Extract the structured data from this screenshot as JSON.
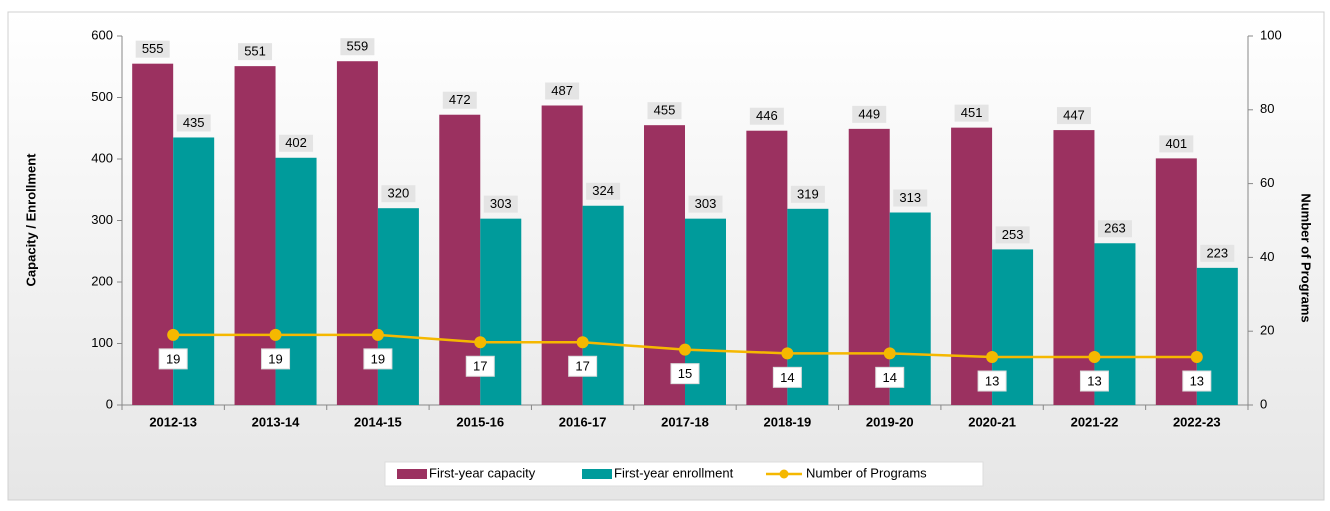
{
  "chart_data": {
    "type": "bar",
    "y_label": "Capacity / Enrollment",
    "y2_label": "Number of Programs",
    "categories": [
      "2012-13",
      "2013-14",
      "2014-15",
      "2015-16",
      "2016-17",
      "2017-18",
      "2018-19",
      "2019-20",
      "2020-21",
      "2021-22",
      "2022-23"
    ],
    "series": [
      {
        "name": "First-year capacity",
        "color": "#9b3160",
        "type": "bar",
        "values": [
          555,
          551,
          559,
          472,
          487,
          455,
          446,
          449,
          451,
          447,
          401
        ]
      },
      {
        "name": "First-year enrollment",
        "color": "#009b9b",
        "type": "bar",
        "values": [
          435,
          402,
          320,
          303,
          324,
          303,
          319,
          313,
          253,
          263,
          223
        ]
      },
      {
        "name": "Number of Programs",
        "color": "#f5b800",
        "type": "line",
        "axis": "y2",
        "values": [
          19,
          19,
          19,
          17,
          17,
          15,
          14,
          14,
          13,
          13,
          13
        ]
      }
    ],
    "ylim": [
      0,
      600
    ],
    "yticks": [
      0,
      100,
      200,
      300,
      400,
      500,
      600
    ],
    "y2lim": [
      0,
      100
    ],
    "y2ticks": [
      0,
      20,
      40,
      60,
      80,
      100
    ],
    "legend": "bottom"
  }
}
